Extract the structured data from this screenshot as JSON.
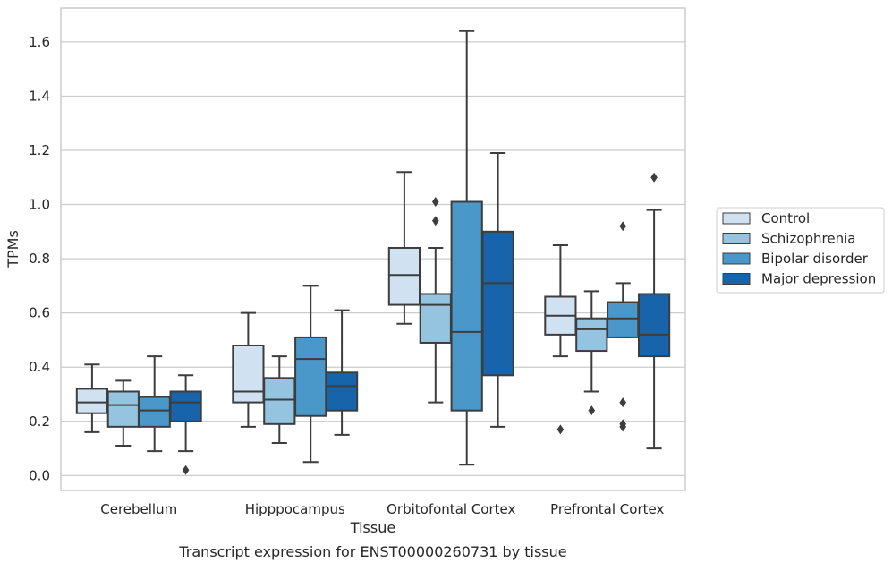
{
  "caption": "Transcript expression for ENST00000260731 by tissue",
  "chart_data": {
    "type": "box",
    "xlabel": "Tissue",
    "ylabel": "TPMs",
    "ylim": [
      -0.055,
      1.725
    ],
    "yticks": [
      "0.0",
      "0.2",
      "0.4",
      "0.6",
      "0.8",
      "1.0",
      "1.2",
      "1.4",
      "1.6"
    ],
    "ytick_values": [
      0.0,
      0.2,
      0.4,
      0.6,
      0.8,
      1.0,
      1.2,
      1.4,
      1.6
    ],
    "grid": true,
    "legend_position": "right",
    "categories": [
      "Cerebellum",
      "Hipppocampus",
      "Orbitofontal Cortex",
      "Prefrontal Cortex"
    ],
    "series": [
      {
        "name": "Control",
        "color": "#d0e1f2",
        "boxes": [
          {
            "whislo": 0.16,
            "q1": 0.23,
            "med": 0.27,
            "q3": 0.32,
            "whishi": 0.41,
            "fliers": []
          },
          {
            "whislo": 0.18,
            "q1": 0.27,
            "med": 0.31,
            "q3": 0.48,
            "whishi": 0.6,
            "fliers": []
          },
          {
            "whislo": 0.56,
            "q1": 0.63,
            "med": 0.74,
            "q3": 0.84,
            "whishi": 1.12,
            "fliers": []
          },
          {
            "whislo": 0.44,
            "q1": 0.52,
            "med": 0.59,
            "q3": 0.66,
            "whishi": 0.85,
            "fliers": [
              0.17
            ]
          }
        ]
      },
      {
        "name": "Schizophrenia",
        "color": "#94c4df",
        "boxes": [
          {
            "whislo": 0.11,
            "q1": 0.18,
            "med": 0.26,
            "q3": 0.31,
            "whishi": 0.35,
            "fliers": []
          },
          {
            "whislo": 0.12,
            "q1": 0.19,
            "med": 0.28,
            "q3": 0.36,
            "whishi": 0.44,
            "fliers": []
          },
          {
            "whislo": 0.27,
            "q1": 0.49,
            "med": 0.63,
            "q3": 0.67,
            "whishi": 0.84,
            "fliers": [
              1.01,
              0.94
            ]
          },
          {
            "whislo": 0.31,
            "q1": 0.46,
            "med": 0.54,
            "q3": 0.58,
            "whishi": 0.68,
            "fliers": [
              0.24
            ]
          }
        ]
      },
      {
        "name": "Bipolar disorder",
        "color": "#4a98c9",
        "boxes": [
          {
            "whislo": 0.09,
            "q1": 0.18,
            "med": 0.24,
            "q3": 0.29,
            "whishi": 0.44,
            "fliers": []
          },
          {
            "whislo": 0.05,
            "q1": 0.22,
            "med": 0.43,
            "q3": 0.51,
            "whishi": 0.7,
            "fliers": []
          },
          {
            "whislo": 0.04,
            "q1": 0.24,
            "med": 0.53,
            "q3": 1.01,
            "whishi": 1.64,
            "fliers": []
          },
          {
            "whislo": 0.51,
            "q1": 0.51,
            "med": 0.58,
            "q3": 0.64,
            "whishi": 0.71,
            "fliers": [
              0.92,
              0.27,
              0.19,
              0.18
            ]
          }
        ]
      },
      {
        "name": "Major depression",
        "color": "#1764ab",
        "boxes": [
          {
            "whislo": 0.09,
            "q1": 0.2,
            "med": 0.27,
            "q3": 0.31,
            "whishi": 0.37,
            "fliers": [
              0.02
            ]
          },
          {
            "whislo": 0.15,
            "q1": 0.24,
            "med": 0.33,
            "q3": 0.38,
            "whishi": 0.61,
            "fliers": []
          },
          {
            "whislo": 0.18,
            "q1": 0.37,
            "med": 0.71,
            "q3": 0.9,
            "whishi": 1.19,
            "fliers": []
          },
          {
            "whislo": 0.1,
            "q1": 0.44,
            "med": 0.52,
            "q3": 0.67,
            "whishi": 0.98,
            "fliers": [
              1.1
            ]
          }
        ]
      }
    ]
  }
}
